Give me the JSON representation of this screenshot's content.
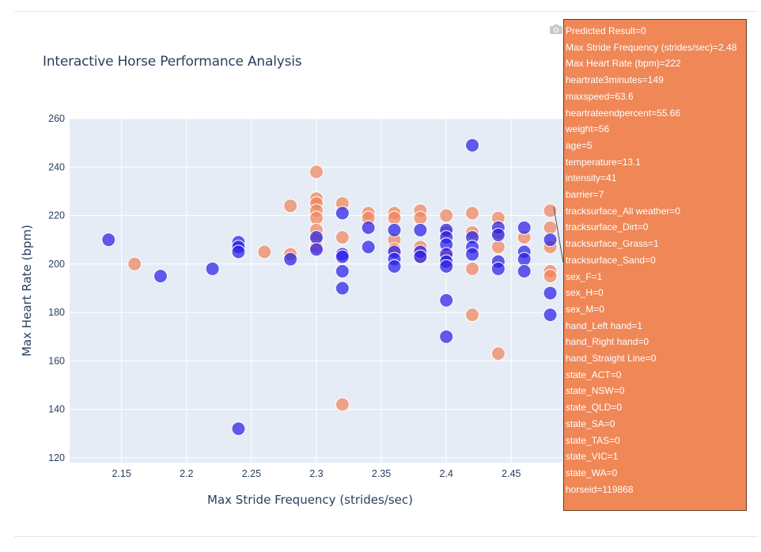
{
  "chart_data": {
    "type": "scatter",
    "title": "Interactive Horse Performance Analysis",
    "xlabel": "Max Stride Frequency (strides/sec)",
    "ylabel": "Max Heart Rate (bpm)",
    "xlim": [
      2.11,
      2.49
    ],
    "ylim": [
      118,
      260
    ],
    "xticks": [
      "2.15",
      "2.2",
      "2.25",
      "2.3",
      "2.35",
      "2.4",
      "2.45"
    ],
    "yticks": [
      "120",
      "140",
      "160",
      "180",
      "200",
      "220",
      "240",
      "260"
    ],
    "grid": true,
    "series": [
      {
        "color": "#f0845b",
        "points": [
          [
            2.16,
            200
          ],
          [
            2.26,
            205
          ],
          [
            2.28,
            224
          ],
          [
            2.28,
            204
          ],
          [
            2.3,
            238
          ],
          [
            2.3,
            227
          ],
          [
            2.3,
            225
          ],
          [
            2.3,
            222
          ],
          [
            2.3,
            219
          ],
          [
            2.3,
            214
          ],
          [
            2.3,
            210
          ],
          [
            2.3,
            207
          ],
          [
            2.32,
            225
          ],
          [
            2.32,
            211
          ],
          [
            2.32,
            142
          ],
          [
            2.34,
            221
          ],
          [
            2.34,
            219
          ],
          [
            2.36,
            221
          ],
          [
            2.36,
            219
          ],
          [
            2.36,
            210
          ],
          [
            2.36,
            206
          ],
          [
            2.38,
            222
          ],
          [
            2.38,
            219
          ],
          [
            2.38,
            207
          ],
          [
            2.38,
            203
          ],
          [
            2.4,
            220
          ],
          [
            2.4,
            213
          ],
          [
            2.4,
            203
          ],
          [
            2.42,
            221
          ],
          [
            2.42,
            213
          ],
          [
            2.42,
            198
          ],
          [
            2.42,
            179
          ],
          [
            2.44,
            219
          ],
          [
            2.44,
            213
          ],
          [
            2.44,
            207
          ],
          [
            2.44,
            163
          ],
          [
            2.46,
            211
          ],
          [
            2.48,
            222
          ],
          [
            2.48,
            215
          ],
          [
            2.48,
            207
          ],
          [
            2.48,
            197
          ],
          [
            2.48,
            195
          ]
        ]
      },
      {
        "color": "#2a1fe6",
        "points": [
          [
            2.14,
            210
          ],
          [
            2.18,
            195
          ],
          [
            2.22,
            198
          ],
          [
            2.24,
            209
          ],
          [
            2.24,
            207
          ],
          [
            2.24,
            205
          ],
          [
            2.24,
            132
          ],
          [
            2.28,
            202
          ],
          [
            2.3,
            211
          ],
          [
            2.3,
            206
          ],
          [
            2.32,
            221
          ],
          [
            2.32,
            204
          ],
          [
            2.32,
            203
          ],
          [
            2.32,
            197
          ],
          [
            2.32,
            190
          ],
          [
            2.34,
            215
          ],
          [
            2.34,
            207
          ],
          [
            2.36,
            214
          ],
          [
            2.36,
            205
          ],
          [
            2.36,
            202
          ],
          [
            2.36,
            199
          ],
          [
            2.38,
            214
          ],
          [
            2.38,
            205
          ],
          [
            2.38,
            203
          ],
          [
            2.4,
            214
          ],
          [
            2.4,
            211
          ],
          [
            2.4,
            208
          ],
          [
            2.4,
            204
          ],
          [
            2.4,
            201
          ],
          [
            2.4,
            199
          ],
          [
            2.4,
            185
          ],
          [
            2.4,
            170
          ],
          [
            2.42,
            249
          ],
          [
            2.42,
            211
          ],
          [
            2.42,
            207
          ],
          [
            2.42,
            204
          ],
          [
            2.44,
            215
          ],
          [
            2.44,
            212
          ],
          [
            2.44,
            201
          ],
          [
            2.44,
            198
          ],
          [
            2.46,
            215
          ],
          [
            2.46,
            205
          ],
          [
            2.46,
            202
          ],
          [
            2.46,
            197
          ],
          [
            2.48,
            210
          ],
          [
            2.48,
            188
          ],
          [
            2.48,
            179
          ]
        ]
      }
    ]
  },
  "hover_label": {
    "color": "#ef8757",
    "lines": [
      "Predicted Result=0",
      "Max Stride Frequency (strides/sec)=2.48",
      "Max Heart Rate (bpm)=222",
      "heartrate3minutes=149",
      "maxspeed=63.6",
      "heartrateendpercent=55.66",
      "weight=56",
      "age=5",
      "temperature=13.1",
      "intensity=41",
      "barrier=7",
      "tracksurface_All weather=0",
      "tracksurface_Dirt=0",
      "tracksurface_Grass=1",
      "tracksurface_Sand=0",
      "sex_F=1",
      "sex_H=0",
      "sex_M=0",
      "hand_Left hand=1",
      "hand_Right hand=0",
      "hand_Straight Line=0",
      "state_ACT=0",
      "state_NSW=0",
      "state_QLD=0",
      "state_SA=0",
      "state_TAS=0",
      "state_VIC=1",
      "state_WA=0",
      "horseid=119868"
    ]
  },
  "toolbar": {
    "icon": "camera-icon"
  }
}
